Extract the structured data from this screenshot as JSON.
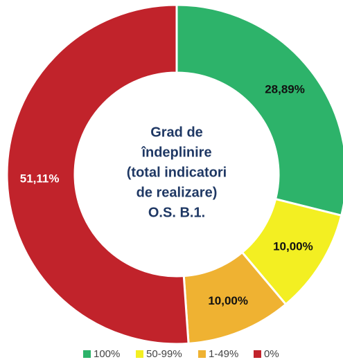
{
  "chart_data": {
    "type": "donut",
    "title": [
      "Grad de",
      "îndeplinire",
      "(total indicatori",
      "de realizare)",
      "O.S. B.1."
    ],
    "categories": [
      "100%",
      "50-99%",
      "1-49%",
      "0%"
    ],
    "values": [
      28.89,
      10.0,
      10.0,
      51.11
    ],
    "value_labels": [
      "28,89%",
      "10,00%",
      "10,00%",
      "51,11%"
    ],
    "colors": [
      "#2db36a",
      "#f3ef22",
      "#efb232",
      "#c1232b"
    ],
    "legend": "bottom"
  }
}
